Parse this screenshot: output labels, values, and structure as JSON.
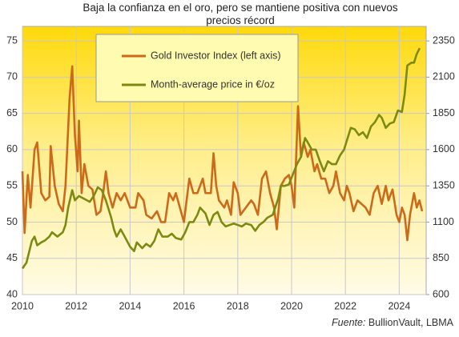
{
  "chart_data": {
    "type": "line",
    "title": "Baja la confianza en el oro, pero se mantiene positiva con nuevos\nprecios récord",
    "source_label": "Fuente:",
    "source": "BullionVault, LBMA",
    "xlim": [
      2010,
      2025
    ],
    "xticks": [
      2010,
      2012,
      2014,
      2016,
      2018,
      2020,
      2022,
      2024
    ],
    "ylim": [
      40,
      77
    ],
    "yticks": [
      40,
      45,
      50,
      55,
      60,
      65,
      70,
      75
    ],
    "y2lim": [
      600,
      2450
    ],
    "y2ticks": [
      600,
      850,
      1100,
      1350,
      1600,
      1850,
      2100,
      2350
    ],
    "grid": true,
    "legend": "top-left",
    "series": [
      {
        "name": "Gold Investor Index (left axis)",
        "color": "#cc6a1a",
        "axis": "y",
        "x": [
          2010.0,
          2010.08,
          2010.2,
          2010.3,
          2010.45,
          2010.55,
          2010.7,
          2010.85,
          2011.0,
          2011.05,
          2011.2,
          2011.35,
          2011.5,
          2011.6,
          2011.75,
          2011.85,
          2011.95,
          2012.05,
          2012.1,
          2012.2,
          2012.3,
          2012.45,
          2012.6,
          2012.75,
          2012.9,
          2013.0,
          2013.1,
          2013.2,
          2013.35,
          2013.5,
          2013.65,
          2013.8,
          2014.0,
          2014.2,
          2014.3,
          2014.5,
          2014.6,
          2014.8,
          2015.0,
          2015.15,
          2015.3,
          2015.45,
          2015.6,
          2015.7,
          2015.85,
          2016.0,
          2016.1,
          2016.2,
          2016.35,
          2016.5,
          2016.7,
          2016.8,
          2017.0,
          2017.1,
          2017.2,
          2017.3,
          2017.5,
          2017.6,
          2017.75,
          2017.85,
          2018.0,
          2018.1,
          2018.3,
          2018.5,
          2018.6,
          2018.75,
          2018.9,
          2019.05,
          2019.2,
          2019.35,
          2019.45,
          2019.6,
          2019.75,
          2019.9,
          2020.0,
          2020.1,
          2020.24,
          2020.35,
          2020.45,
          2020.6,
          2020.7,
          2020.85,
          2020.95,
          2021.1,
          2021.25,
          2021.4,
          2021.55,
          2021.65,
          2021.8,
          2021.95,
          2022.05,
          2022.15,
          2022.3,
          2022.45,
          2022.6,
          2022.75,
          2022.9,
          2023.05,
          2023.2,
          2023.35,
          2023.5,
          2023.6,
          2023.75,
          2023.9,
          2024.0,
          2024.1,
          2024.2,
          2024.3,
          2024.4,
          2024.55,
          2024.65,
          2024.75,
          2024.85
        ],
        "values": [
          57,
          48.5,
          56.5,
          52,
          60,
          61,
          54,
          53,
          53.5,
          60.5,
          55,
          52.5,
          51.5,
          55,
          67,
          71.5,
          62,
          57,
          64,
          54,
          58,
          55,
          54.5,
          51,
          51.5,
          54,
          57,
          54,
          52,
          54,
          53,
          54,
          52,
          52,
          54,
          53,
          51,
          50.5,
          51.5,
          50,
          50,
          54,
          53,
          54,
          52,
          50,
          53,
          56,
          54,
          54,
          56,
          54,
          54,
          59.5,
          55,
          53,
          52,
          53,
          51,
          55.5,
          54,
          51,
          52,
          53,
          52.5,
          51,
          56,
          57,
          54,
          52,
          49,
          55,
          56,
          56.5,
          55,
          52,
          66,
          59,
          61,
          59,
          60,
          57,
          58,
          56,
          56,
          54,
          55,
          57,
          54,
          53,
          55,
          54,
          51.5,
          53,
          52.5,
          52,
          51,
          54,
          55,
          52.5,
          55,
          53,
          54.5,
          51,
          50,
          52,
          51,
          47.5,
          51,
          54,
          52,
          53,
          51.5
        ]
      },
      {
        "name": "Month-average price in €/oz",
        "color": "#7d8a12",
        "axis": "y2",
        "x": [
          2010.0,
          2010.15,
          2010.35,
          2010.45,
          2010.55,
          2010.7,
          2010.85,
          2011.0,
          2011.1,
          2011.3,
          2011.5,
          2011.6,
          2011.7,
          2011.85,
          2011.95,
          2012.1,
          2012.3,
          2012.5,
          2012.65,
          2012.8,
          2012.95,
          2013.1,
          2013.3,
          2013.4,
          2013.5,
          2013.65,
          2013.8,
          2014.0,
          2014.15,
          2014.25,
          2014.45,
          2014.6,
          2014.75,
          2014.9,
          2015.05,
          2015.2,
          2015.4,
          2015.55,
          2015.7,
          2015.9,
          2016.05,
          2016.2,
          2016.35,
          2016.5,
          2016.6,
          2016.8,
          2016.95,
          2017.1,
          2017.25,
          2017.4,
          2017.55,
          2017.7,
          2017.85,
          2018.0,
          2018.15,
          2018.3,
          2018.5,
          2018.65,
          2018.8,
          2018.95,
          2019.1,
          2019.3,
          2019.5,
          2019.6,
          2019.75,
          2019.9,
          2020.05,
          2020.2,
          2020.35,
          2020.5,
          2020.6,
          2020.75,
          2020.9,
          2021.05,
          2021.2,
          2021.35,
          2021.5,
          2021.65,
          2021.8,
          2021.95,
          2022.05,
          2022.2,
          2022.35,
          2022.5,
          2022.65,
          2022.8,
          2022.95,
          2023.1,
          2023.25,
          2023.35,
          2023.5,
          2023.65,
          2023.8,
          2023.95,
          2024.1,
          2024.2,
          2024.3,
          2024.45,
          2024.55,
          2024.65,
          2024.76
        ],
        "values": [
          780,
          820,
          970,
          1000,
          940,
          960,
          975,
          1000,
          1030,
          1000,
          1030,
          1080,
          1200,
          1320,
          1250,
          1280,
          1260,
          1240,
          1280,
          1340,
          1320,
          1250,
          1130,
          1050,
          1000,
          1050,
          1000,
          930,
          900,
          960,
          920,
          950,
          930,
          970,
          1050,
          1000,
          1000,
          1020,
          990,
          980,
          1030,
          1100,
          1100,
          1150,
          1200,
          1160,
          1080,
          1150,
          1170,
          1100,
          1070,
          1080,
          1090,
          1080,
          1070,
          1090,
          1080,
          1040,
          1080,
          1100,
          1130,
          1150,
          1260,
          1350,
          1350,
          1360,
          1430,
          1500,
          1550,
          1680,
          1650,
          1600,
          1600,
          1520,
          1450,
          1520,
          1500,
          1500,
          1560,
          1600,
          1660,
          1750,
          1740,
          1700,
          1720,
          1680,
          1760,
          1790,
          1840,
          1820,
          1750,
          1780,
          1790,
          1870,
          1860,
          1980,
          2180,
          2200,
          2200,
          2260,
          2300
        ]
      }
    ]
  }
}
